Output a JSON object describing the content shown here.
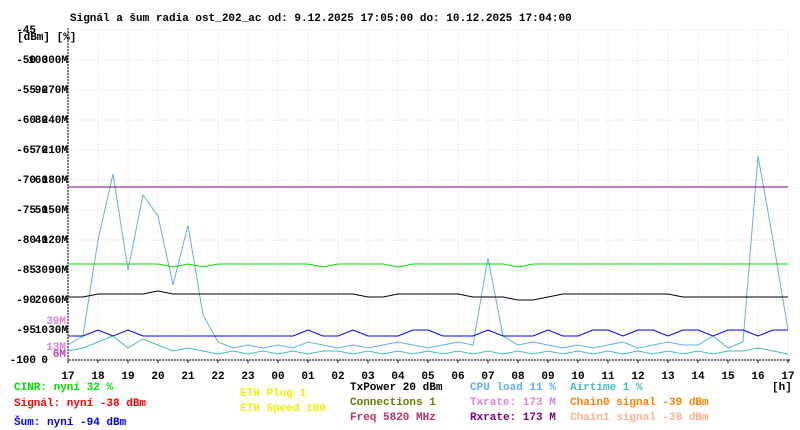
{
  "chart_data": {
    "type": "line",
    "title": "Signál a šum radia ost_202_ac od: 9.12.2025 17:05:00 do: 10.12.2025 17:04:00",
    "axis_units": "[dBm] [%]",
    "x": [
      0,
      0.5,
      1,
      1.5,
      2,
      2.5,
      3,
      3.5,
      4,
      4.5,
      5,
      5.5,
      6,
      6.5,
      7,
      7.5,
      8,
      8.5,
      9,
      9.5,
      10,
      10.5,
      11,
      11.5,
      12,
      12.5,
      13,
      13.5,
      14,
      14.5,
      15,
      15.5,
      16,
      16.5,
      17,
      17.5,
      18,
      18.5,
      19,
      19.5,
      20,
      20.5,
      21,
      21.5,
      22,
      22.5,
      23,
      23.5,
      24
    ],
    "xlim": [
      0,
      24
    ],
    "xticks": [
      {
        "value": 0,
        "label": "17"
      },
      {
        "value": 1,
        "label": "18"
      },
      {
        "value": 2,
        "label": "19"
      },
      {
        "value": 3,
        "label": "20"
      },
      {
        "value": 4,
        "label": "21"
      },
      {
        "value": 5,
        "label": "22"
      },
      {
        "value": 6,
        "label": "23"
      },
      {
        "value": 7,
        "label": "00"
      },
      {
        "value": 8,
        "label": "01"
      },
      {
        "value": 9,
        "label": "02"
      },
      {
        "value": 10,
        "label": "03"
      },
      {
        "value": 11,
        "label": "04"
      },
      {
        "value": 12,
        "label": "05"
      },
      {
        "value": 13,
        "label": "06"
      },
      {
        "value": 14,
        "label": "07"
      },
      {
        "value": 15,
        "label": "08"
      },
      {
        "value": 16,
        "label": "09"
      },
      {
        "value": 17,
        "label": "10"
      },
      {
        "value": 18,
        "label": "11"
      },
      {
        "value": 19,
        "label": "12"
      },
      {
        "value": 20,
        "label": "13"
      },
      {
        "value": 21,
        "label": "14"
      },
      {
        "value": 22,
        "label": "15"
      },
      {
        "value": 23,
        "label": "16"
      },
      {
        "value": 24,
        "label": "17"
      }
    ],
    "x_unit": "[h]",
    "ylim": [
      -100,
      -45
    ],
    "yticks": [
      -45,
      -50,
      -55,
      -60,
      -65,
      -70,
      -75,
      -80,
      -85,
      -90,
      -95,
      -100
    ],
    "y2lim": [
      0,
      110
    ],
    "y2ticks": [
      100,
      90,
      80,
      70,
      60,
      50,
      40,
      30,
      20,
      10,
      0
    ],
    "y3lim": [
      0,
      330
    ],
    "y3ticks": [
      {
        "value": 300,
        "label": "300M"
      },
      {
        "value": 270,
        "label": "270M"
      },
      {
        "value": 240,
        "label": "240M"
      },
      {
        "value": 210,
        "label": "210M"
      },
      {
        "value": 180,
        "label": "180M"
      },
      {
        "value": 150,
        "label": "150M"
      },
      {
        "value": 120,
        "label": "120M"
      },
      {
        "value": 90,
        "label": "90M"
      },
      {
        "value": 60,
        "label": "60M"
      },
      {
        "value": 30,
        "label": "30M"
      }
    ],
    "grid": true,
    "series": [
      {
        "name": "CPU load 11 %",
        "color": "#60b0f0",
        "axis": "y2",
        "values": [
          5,
          8,
          40,
          62,
          30,
          55,
          48,
          25,
          45,
          15,
          6,
          4,
          5,
          4,
          5,
          4,
          6,
          5,
          4,
          5,
          4,
          5,
          6,
          5,
          4,
          5,
          6,
          5,
          34,
          8,
          5,
          6,
          5,
          4,
          5,
          4,
          5,
          6,
          4,
          5,
          6,
          5,
          5,
          8,
          4,
          6,
          68,
          40,
          10
        ]
      },
      {
        "name": "Airtime 1 %",
        "color": "#40c0c0",
        "axis": "y2",
        "values": [
          3,
          4,
          6,
          8,
          4,
          7,
          5,
          3,
          4,
          3,
          2,
          3,
          2,
          3,
          2,
          3,
          2,
          3,
          3,
          2,
          3,
          2,
          3,
          2,
          3,
          2,
          3,
          2,
          3,
          2,
          3,
          2,
          3,
          2,
          3,
          2,
          3,
          2,
          3,
          2,
          3,
          2,
          3,
          2,
          3,
          3,
          4,
          3,
          2
        ]
      },
      {
        "name": "CINR: nyní 32 %",
        "color": "#00e000",
        "axis": "y2",
        "values": [
          32,
          32,
          32,
          32,
          32,
          32,
          32,
          31,
          32,
          31,
          32,
          32,
          32,
          32,
          32,
          32,
          32,
          31,
          32,
          32,
          32,
          32,
          31,
          32,
          32,
          32,
          32,
          32,
          32,
          32,
          31,
          32,
          32,
          32,
          32,
          32,
          32,
          32,
          32,
          32,
          32,
          32,
          32,
          32,
          32,
          32,
          32,
          32,
          32
        ]
      },
      {
        "name": "TxPower 20 dBm",
        "color": "#000000",
        "axis": "y2",
        "values": [
          21,
          21,
          22,
          22,
          22,
          22,
          23,
          22,
          22,
          22,
          22,
          22,
          22,
          22,
          22,
          22,
          22,
          22,
          22,
          22,
          21,
          21,
          22,
          22,
          22,
          22,
          22,
          21,
          21,
          21,
          20,
          20,
          21,
          22,
          22,
          22,
          22,
          22,
          22,
          22,
          22,
          21,
          21,
          21,
          21,
          21,
          21,
          21,
          21
        ]
      },
      {
        "name": "Šum: nyní -94 dBm",
        "color": "#0000ff",
        "axis": "y",
        "values": [
          -96,
          -96,
          -95,
          -96,
          -95,
          -96,
          -96,
          -96,
          -96,
          -96,
          -96,
          -96,
          -96,
          -96,
          -96,
          -96,
          -95,
          -96,
          -96,
          -95,
          -96,
          -96,
          -96,
          -95,
          -95,
          -96,
          -96,
          -96,
          -95,
          -96,
          -96,
          -96,
          -95,
          -96,
          -96,
          -95,
          -95,
          -96,
          -95,
          -95,
          -96,
          -95,
          -95,
          -96,
          -95,
          -95,
          -96,
          -95,
          -95
        ]
      },
      {
        "name": "Rxrate: 173 M",
        "color": "#800080",
        "axis": "y3",
        "values": [
          173,
          173,
          173,
          173,
          173,
          173,
          173,
          173,
          173,
          173,
          173,
          173,
          173,
          173,
          173,
          173,
          173,
          173,
          173,
          173,
          173,
          173,
          173,
          173,
          173,
          173,
          173,
          173,
          173,
          173,
          173,
          173,
          173,
          173,
          173,
          173,
          173,
          173,
          173,
          173,
          173,
          173,
          173,
          173,
          173,
          173,
          173,
          173,
          173
        ]
      }
    ],
    "markers": {
      "axis": "y3",
      "colors": [
        "#e080e0",
        "#e080e0",
        "#c040c0"
      ],
      "values": [
        39,
        13,
        6
      ],
      "value_labels": [
        "39M",
        "13M",
        "6M"
      ]
    },
    "legend_extra": [
      {
        "text": "Signál: nyní -38 dBm",
        "color": "#ff0000"
      },
      {
        "text": "ETH Plug 1",
        "color": "#f0f000"
      },
      {
        "text": "ETH Speed 100",
        "color": "#f0f000"
      },
      {
        "text": "Connections 1",
        "color": "#608000"
      },
      {
        "text": "Freq 5820 MHz",
        "color": "#c03060"
      },
      {
        "text": "Txrate: 173 M",
        "color": "#e080e0"
      },
      {
        "text": "Chain0 signal -39 dBm",
        "color": "#ff8000"
      },
      {
        "text": "Chain1 signal -38 dBm",
        "color": "#ffb090"
      }
    ]
  }
}
